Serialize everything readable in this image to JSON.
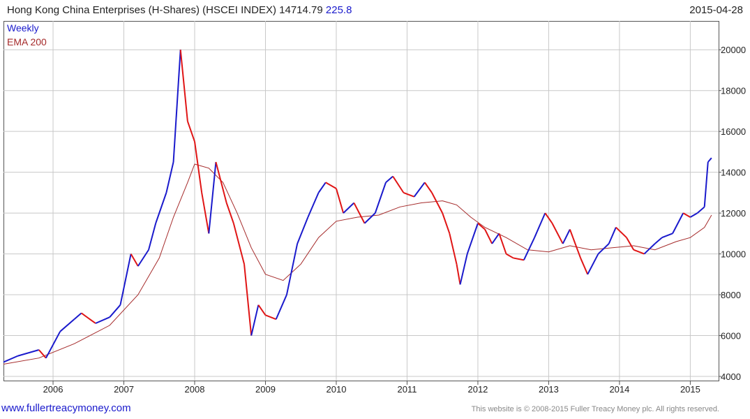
{
  "header": {
    "title": "Hong Kong China Enterprises (H-Shares) (HSCEI INDEX)",
    "last": "14714.79",
    "change": "225.8",
    "date": "2015-04-28"
  },
  "footer": {
    "site": "www.fullertreacymoney.com",
    "copyright": "This website is © 2008-2015 Fuller Treacy Money plc. All rights reserved."
  },
  "colors": {
    "up": "#1a1acc",
    "down": "#e01515",
    "ema": "#a52a2a",
    "grid": "#c8c8c8"
  },
  "chart_data": {
    "type": "line",
    "ylim": [
      4000,
      21000
    ],
    "y_ticks": [
      4000,
      6000,
      8000,
      10000,
      12000,
      14000,
      16000,
      18000,
      20000
    ],
    "x_ticks": [
      "2006",
      "2007",
      "2008",
      "2009",
      "2010",
      "2011",
      "2012",
      "2013",
      "2014",
      "2015"
    ],
    "x_range": [
      2005.3,
      2015.4
    ],
    "grid": true,
    "legend_position": "top-left",
    "series": [
      {
        "name": "Weekly",
        "x": [
          2005.3,
          2005.5,
          2005.8,
          2005.9,
          2006.1,
          2006.3,
          2006.4,
          2006.6,
          2006.8,
          2006.95,
          2007.1,
          2007.2,
          2007.35,
          2007.45,
          2007.6,
          2007.7,
          2007.8,
          2007.9,
          2008.0,
          2008.1,
          2008.2,
          2008.3,
          2008.45,
          2008.55,
          2008.7,
          2008.8,
          2008.9,
          2009.0,
          2009.15,
          2009.3,
          2009.45,
          2009.6,
          2009.75,
          2009.85,
          2010.0,
          2010.1,
          2010.25,
          2010.4,
          2010.55,
          2010.7,
          2010.8,
          2010.95,
          2011.1,
          2011.25,
          2011.35,
          2011.5,
          2011.6,
          2011.7,
          2011.75,
          2011.85,
          2012.0,
          2012.1,
          2012.2,
          2012.3,
          2012.4,
          2012.5,
          2012.65,
          2012.8,
          2012.95,
          2013.05,
          2013.2,
          2013.3,
          2013.45,
          2013.55,
          2013.7,
          2013.85,
          2013.95,
          2014.1,
          2014.2,
          2014.35,
          2014.5,
          2014.6,
          2014.75,
          2014.9,
          2015.0,
          2015.1,
          2015.2,
          2015.25,
          2015.3
        ],
        "values": [
          4700,
          5000,
          5300,
          4900,
          6200,
          6800,
          7100,
          6600,
          6900,
          7500,
          10000,
          9400,
          10200,
          11500,
          13000,
          14500,
          20000,
          16500,
          15500,
          13000,
          11000,
          14500,
          12500,
          11500,
          9500,
          6000,
          7500,
          7000,
          6800,
          8000,
          10500,
          11800,
          13000,
          13500,
          13200,
          12000,
          12500,
          11500,
          12000,
          13500,
          13800,
          13000,
          12800,
          13500,
          13000,
          12000,
          11000,
          9500,
          8500,
          10000,
          11500,
          11200,
          10500,
          11000,
          10000,
          9800,
          9700,
          10800,
          12000,
          11500,
          10500,
          11200,
          9800,
          9000,
          10000,
          10500,
          11300,
          10800,
          10200,
          10000,
          10500,
          10800,
          11000,
          12000,
          11800,
          12000,
          12300,
          14500,
          14700
        ]
      },
      {
        "name": "EMA 200",
        "x": [
          2005.3,
          2005.8,
          2006.3,
          2006.8,
          2007.2,
          2007.5,
          2007.7,
          2007.9,
          2008.0,
          2008.2,
          2008.4,
          2008.6,
          2008.8,
          2009.0,
          2009.25,
          2009.5,
          2009.75,
          2010.0,
          2010.3,
          2010.6,
          2010.9,
          2011.2,
          2011.5,
          2011.7,
          2011.9,
          2012.1,
          2012.4,
          2012.7,
          2013.0,
          2013.3,
          2013.6,
          2013.9,
          2014.2,
          2014.5,
          2014.8,
          2015.0,
          2015.2,
          2015.3
        ],
        "values": [
          4600,
          4900,
          5600,
          6500,
          8000,
          9800,
          11800,
          13500,
          14400,
          14200,
          13500,
          12000,
          10300,
          9000,
          8700,
          9500,
          10800,
          11600,
          11800,
          11900,
          12300,
          12500,
          12600,
          12400,
          11800,
          11300,
          10800,
          10200,
          10100,
          10400,
          10200,
          10300,
          10400,
          10200,
          10600,
          10800,
          11300,
          11900
        ]
      }
    ]
  }
}
